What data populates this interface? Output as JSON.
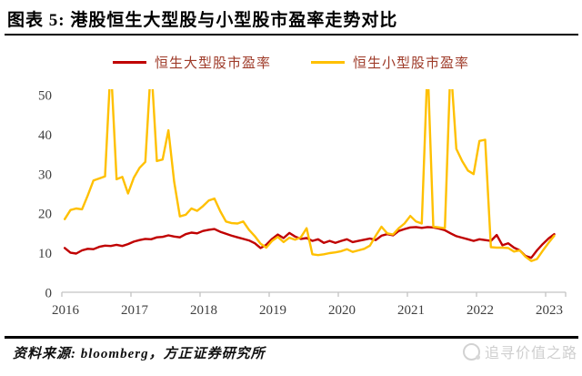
{
  "header": {
    "title": "图表 5: 港股恒生大型股与小型股市盈率走势对比"
  },
  "footer": {
    "source": "资料来源: bloomberg，方正证券研究所",
    "watermark": "追寻价值之路"
  },
  "colors": {
    "large_cap_line": "#C00000",
    "small_cap_line": "#FFC000",
    "legend_text": "#9E3A28",
    "axis": "#C3C3C3",
    "tick_text": "#3F3F3F",
    "title_text": "#000000",
    "watermark": "#CFCFCF"
  },
  "chart_data": {
    "type": "line",
    "title": "港股恒生大型股与小型股市盈率走势对比",
    "xlabel": "",
    "ylabel": "",
    "grid": false,
    "legend_position": "top",
    "ylim": [
      0,
      50
    ],
    "y_ticks": [
      0,
      10,
      20,
      30,
      40,
      50
    ],
    "x_tick_labels": [
      "2016",
      "2017",
      "2018",
      "2019",
      "2020",
      "2021",
      "2022",
      "2023"
    ],
    "x_unit": "month",
    "points_start": "2016-01",
    "points_end": "2023-02",
    "clip_note": "values above 50 are clipped at plot top (off-scale spikes)",
    "series": [
      {
        "name": "恒生大型股市盈率",
        "color_key": "large_cap_line",
        "values": [
          11.2,
          10.0,
          9.8,
          10.6,
          11.0,
          10.9,
          11.5,
          11.8,
          11.7,
          12.0,
          11.7,
          12.2,
          12.8,
          13.2,
          13.5,
          13.4,
          13.9,
          14.0,
          14.4,
          14.1,
          13.9,
          14.7,
          15.1,
          14.9,
          15.5,
          15.8,
          16.0,
          15.3,
          14.8,
          14.3,
          13.9,
          13.5,
          13.1,
          12.4,
          11.2,
          12.0,
          13.5,
          14.6,
          13.7,
          15.0,
          14.1,
          13.5,
          13.7,
          13.0,
          13.4,
          12.5,
          13.0,
          12.5,
          13.0,
          13.4,
          12.7,
          13.0,
          13.3,
          13.6,
          13.2,
          14.3,
          14.7,
          14.4,
          15.5,
          16.0,
          16.4,
          16.5,
          16.3,
          16.5,
          16.4,
          16.1,
          15.7,
          14.9,
          14.2,
          13.8,
          13.4,
          13.0,
          13.4,
          13.2,
          13.0,
          14.5,
          11.9,
          12.4,
          11.3,
          10.6,
          9.2,
          8.7,
          10.6,
          12.2,
          13.6,
          14.7
        ]
      },
      {
        "name": "恒生小型股市盈率",
        "color_key": "small_cap_line",
        "values": [
          18.5,
          20.8,
          21.2,
          21.0,
          24.5,
          28.3,
          28.8,
          29.3,
          58.0,
          28.6,
          29.2,
          25.0,
          29.0,
          31.5,
          33.0,
          58.0,
          33.2,
          33.6,
          41.0,
          28.0,
          19.2,
          19.6,
          21.2,
          20.6,
          21.8,
          23.2,
          23.7,
          20.5,
          17.9,
          17.5,
          17.4,
          17.9,
          15.8,
          14.2,
          12.3,
          11.3,
          13.0,
          14.0,
          12.7,
          13.8,
          13.3,
          13.9,
          16.2,
          9.6,
          9.4,
          9.6,
          9.9,
          10.1,
          10.4,
          10.9,
          10.2,
          10.6,
          11.0,
          11.8,
          14.3,
          16.6,
          14.9,
          14.6,
          16.2,
          17.4,
          19.3,
          17.9,
          17.4,
          58.0,
          16.6,
          16.4,
          16.2,
          58.0,
          36.3,
          33.2,
          30.8,
          29.9,
          38.3,
          38.6,
          11.4,
          11.3,
          11.3,
          11.2,
          10.3,
          10.6,
          9.0,
          7.9,
          8.4,
          10.5,
          12.5,
          14.3
        ]
      }
    ]
  }
}
